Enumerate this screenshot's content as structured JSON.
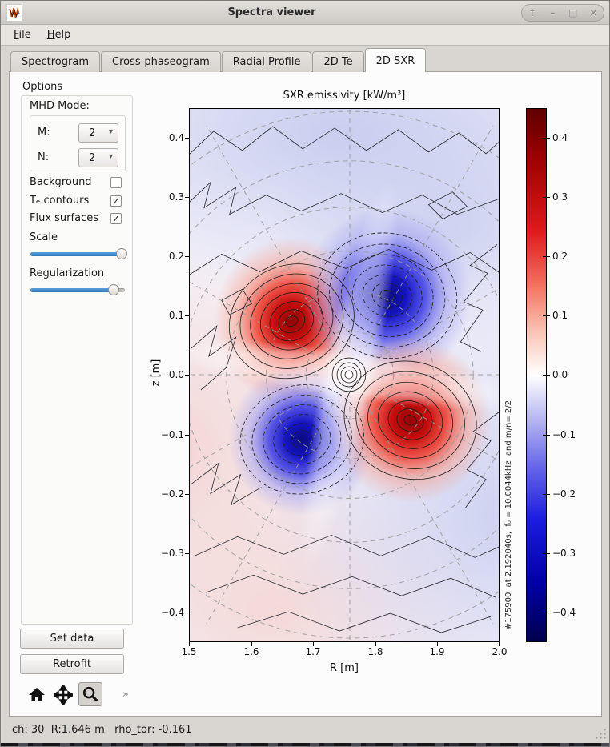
{
  "window": {
    "title": "Spectra viewer",
    "controls": [
      {
        "name": "shade",
        "glyph": "↑"
      },
      {
        "name": "minimize",
        "glyph": "–"
      },
      {
        "name": "maximize",
        "glyph": "□"
      },
      {
        "name": "close",
        "glyph": "×"
      }
    ]
  },
  "menu": {
    "items": [
      {
        "label": "File"
      },
      {
        "label": "Help"
      }
    ]
  },
  "tabs": [
    {
      "label": "Spectrogram",
      "active": false
    },
    {
      "label": "Cross-phaseogram",
      "active": false
    },
    {
      "label": "Radial Profile",
      "active": false
    },
    {
      "label": "2D Te",
      "active": false
    },
    {
      "label": "2D SXR",
      "active": true
    }
  ],
  "sidebar": {
    "options_label": "Options",
    "mhd_mode": {
      "label": "MHD Mode:",
      "m_label": "M:",
      "m_value": "2",
      "n_label": "N:",
      "n_value": "2",
      "arrow_glyph": "▾"
    },
    "checkboxes": [
      {
        "label": "Background",
        "checked": false,
        "mark": ""
      },
      {
        "label": "Tₑ contours",
        "checked": true,
        "mark": "✓"
      },
      {
        "label": "Flux surfaces",
        "checked": true,
        "mark": "✓"
      }
    ],
    "sliders": [
      {
        "label": "Scale",
        "value_pct": 97
      },
      {
        "label": "Regularization",
        "value_pct": 88
      }
    ],
    "buttons": [
      {
        "label": "Set data"
      },
      {
        "label": "Retrofit"
      }
    ],
    "toolbar": {
      "icons": [
        "home-icon",
        "pan-icon",
        "zoom-icon"
      ],
      "active_icon": "zoom-icon",
      "more_glyph": "»"
    }
  },
  "chart_data": {
    "type": "heatmap",
    "title": "SXR emissivity [kW/m³]",
    "xlabel": "R [m]",
    "ylabel": "z [m]",
    "x_ticks": [
      "1.5",
      "1.6",
      "1.7",
      "1.8",
      "1.9",
      "2.0"
    ],
    "y_ticks": [
      "0.4",
      "0.3",
      "0.2",
      "0.1",
      "0.0",
      "−0.1",
      "−0.2",
      "−0.3",
      "−0.4"
    ],
    "xlim": [
      1.5,
      2.0
    ],
    "ylim": [
      -0.45,
      0.45
    ],
    "colormap": "seismic blue-white-red",
    "clim": [
      -0.45,
      0.45
    ],
    "colorbar_ticks": [
      "0.4",
      "0.3",
      "0.2",
      "0.1",
      "0.0",
      "−0.1",
      "−0.2",
      "−0.3",
      "−0.4"
    ],
    "annotation": "#175900  at 2.192040s,  f₀ = 10.0044kHz  and m/n= 2/2",
    "lobes": [
      {
        "R": 1.67,
        "z": 0.1,
        "value": 0.45,
        "sign": "positive"
      },
      {
        "R": 1.82,
        "z": 0.14,
        "value": -0.45,
        "sign": "negative"
      },
      {
        "R": 1.68,
        "z": -0.11,
        "value": -0.4,
        "sign": "negative"
      },
      {
        "R": 1.86,
        "z": -0.08,
        "value": 0.45,
        "sign": "positive"
      }
    ],
    "overlays": [
      "Te contours: black, solid for positive, dashed for negative",
      "flux surfaces: gray dashed concentric circles with radial spokes, center R=1.76 z=0.0"
    ]
  },
  "status_bar": {
    "text": "ch: 30  R:1.646 m   rho_tor: -0.161"
  },
  "colors": {
    "accent_blue": "#3d8dd5",
    "positive_core": "#8f0505",
    "negative_core": "#0b0b7e",
    "window_bg": "#d9d6d2",
    "panel_bg": "#fcfcfc"
  }
}
